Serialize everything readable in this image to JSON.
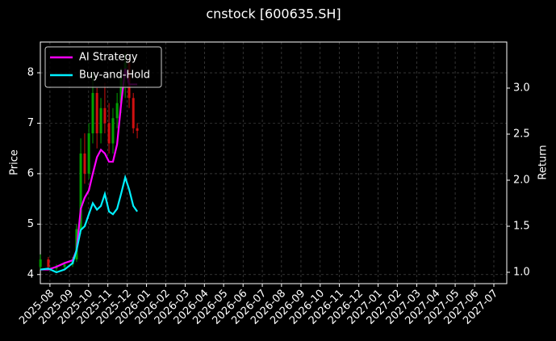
{
  "chart_data": {
    "type": "candlestick",
    "title": "cnstock [600635.SH]",
    "ylabel": "Price",
    "y2label": "Return",
    "x": [
      2025.542,
      2025.576,
      2025.611,
      2025.646,
      2025.681,
      2025.698,
      2025.716,
      2025.733,
      2025.751,
      2025.768,
      2025.786,
      2025.803,
      2025.82,
      2025.838,
      2025.855,
      2025.873,
      2025.89,
      2025.908,
      2025.925,
      2025.943,
      2025.96
    ],
    "open": [
      4.15,
      4.3,
      4.12,
      4.15,
      4.2,
      4.3,
      4.9,
      6.4,
      6.0,
      6.8,
      7.6,
      6.8,
      7.3,
      7.0,
      6.6,
      7.1,
      7.4,
      7.9,
      8.2,
      7.5,
      6.9
    ],
    "high": [
      4.4,
      4.35,
      4.2,
      4.25,
      4.35,
      5.0,
      6.7,
      6.8,
      7.0,
      8.0,
      7.7,
      7.5,
      7.8,
      7.4,
      7.3,
      7.6,
      8.1,
      8.4,
      8.3,
      7.6,
      7.0
    ],
    "low": [
      4.1,
      4.1,
      4.05,
      4.1,
      4.15,
      4.25,
      4.8,
      5.8,
      5.9,
      6.6,
      6.5,
      6.6,
      6.8,
      6.4,
      6.4,
      6.9,
      7.2,
      7.5,
      7.3,
      6.8,
      6.7
    ],
    "close": [
      4.3,
      4.15,
      4.15,
      4.2,
      4.3,
      4.9,
      6.4,
      6.0,
      6.8,
      7.6,
      6.8,
      7.3,
      7.0,
      6.6,
      7.1,
      7.4,
      7.9,
      8.2,
      7.5,
      6.9,
      6.85
    ],
    "up_color": "#00a000",
    "down_color": "#d01010",
    "series": [
      {
        "name": "AI Strategy",
        "color": "#ff00ff",
        "axis": "y2",
        "values": [
          1.03,
          1.03,
          1.06,
          1.1,
          1.13,
          1.24,
          1.69,
          1.81,
          1.89,
          2.07,
          2.25,
          2.33,
          2.29,
          2.2,
          2.2,
          2.39,
          2.82,
          3.21,
          3.04,
          3.04,
          3.04
        ]
      },
      {
        "name": "Buy-and-Hold",
        "color": "#00f0ff",
        "axis": "y2",
        "values": [
          1.03,
          1.04,
          1.0,
          1.03,
          1.1,
          1.24,
          1.46,
          1.5,
          1.63,
          1.75,
          1.68,
          1.72,
          1.85,
          1.66,
          1.63,
          1.69,
          1.85,
          2.03,
          1.9,
          1.72,
          1.66
        ]
      }
    ],
    "xlim": [
      2025.5415,
      2027.5558
    ],
    "xticks": [
      {
        "value": 2025.583,
        "label": "2025-08"
      },
      {
        "value": 2025.667,
        "label": "2025-09"
      },
      {
        "value": 2025.75,
        "label": "2025-10"
      },
      {
        "value": 2025.833,
        "label": "2025-11"
      },
      {
        "value": 2025.917,
        "label": "2025-12"
      },
      {
        "value": 2026.0,
        "label": "2026-01"
      },
      {
        "value": 2026.083,
        "label": "2026-02"
      },
      {
        "value": 2026.167,
        "label": "2026-03"
      },
      {
        "value": 2026.25,
        "label": "2026-04"
      },
      {
        "value": 2026.333,
        "label": "2026-05"
      },
      {
        "value": 2026.417,
        "label": "2026-06"
      },
      {
        "value": 2026.5,
        "label": "2026-07"
      },
      {
        "value": 2026.583,
        "label": "2026-08"
      },
      {
        "value": 2026.667,
        "label": "2026-09"
      },
      {
        "value": 2026.75,
        "label": "2026-10"
      },
      {
        "value": 2026.833,
        "label": "2026-11"
      },
      {
        "value": 2026.917,
        "label": "2026-12"
      },
      {
        "value": 2027.0,
        "label": "2027-01"
      },
      {
        "value": 2027.083,
        "label": "2027-02"
      },
      {
        "value": 2027.167,
        "label": "2027-03"
      },
      {
        "value": 2027.25,
        "label": "2027-04"
      },
      {
        "value": 2027.333,
        "label": "2027-05"
      },
      {
        "value": 2027.417,
        "label": "2027-06"
      },
      {
        "value": 2027.5,
        "label": "2027-07"
      }
    ],
    "ylim": [
      3.82,
      8.61
    ],
    "yticks": [
      4,
      5,
      6,
      7,
      8
    ],
    "y2lim": [
      0.877,
      3.5
    ],
    "y2ticks": [
      {
        "value": 1,
        "label": "1.0"
      },
      1.5,
      {
        "value": 2,
        "label": "2.0"
      },
      2.5,
      {
        "value": 3,
        "label": "3.0"
      }
    ],
    "grid": true,
    "legend": "upper left"
  }
}
